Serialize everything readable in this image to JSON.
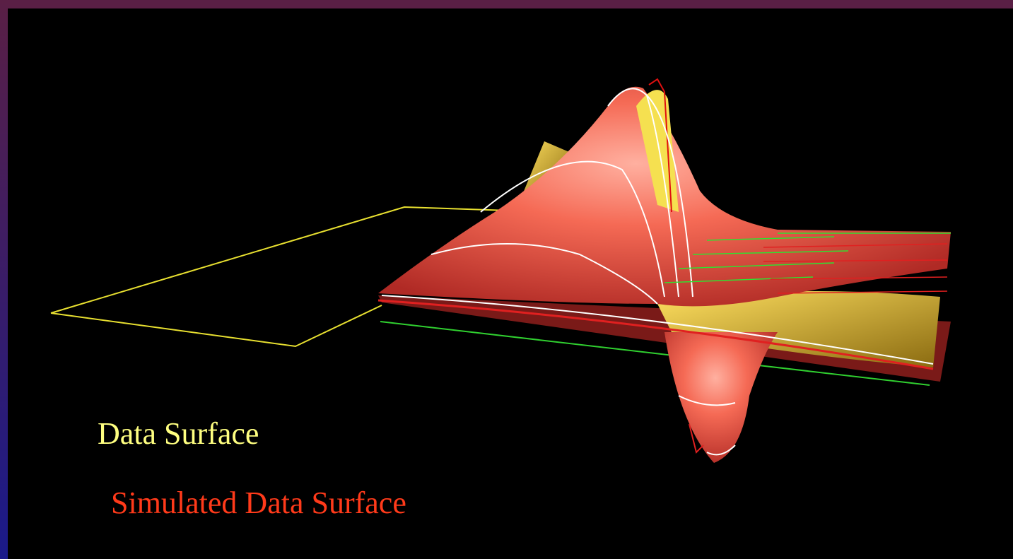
{
  "labels": {
    "data_surface": "Data Surface",
    "simulated_surface": "Simulated Data Surface"
  }
}
